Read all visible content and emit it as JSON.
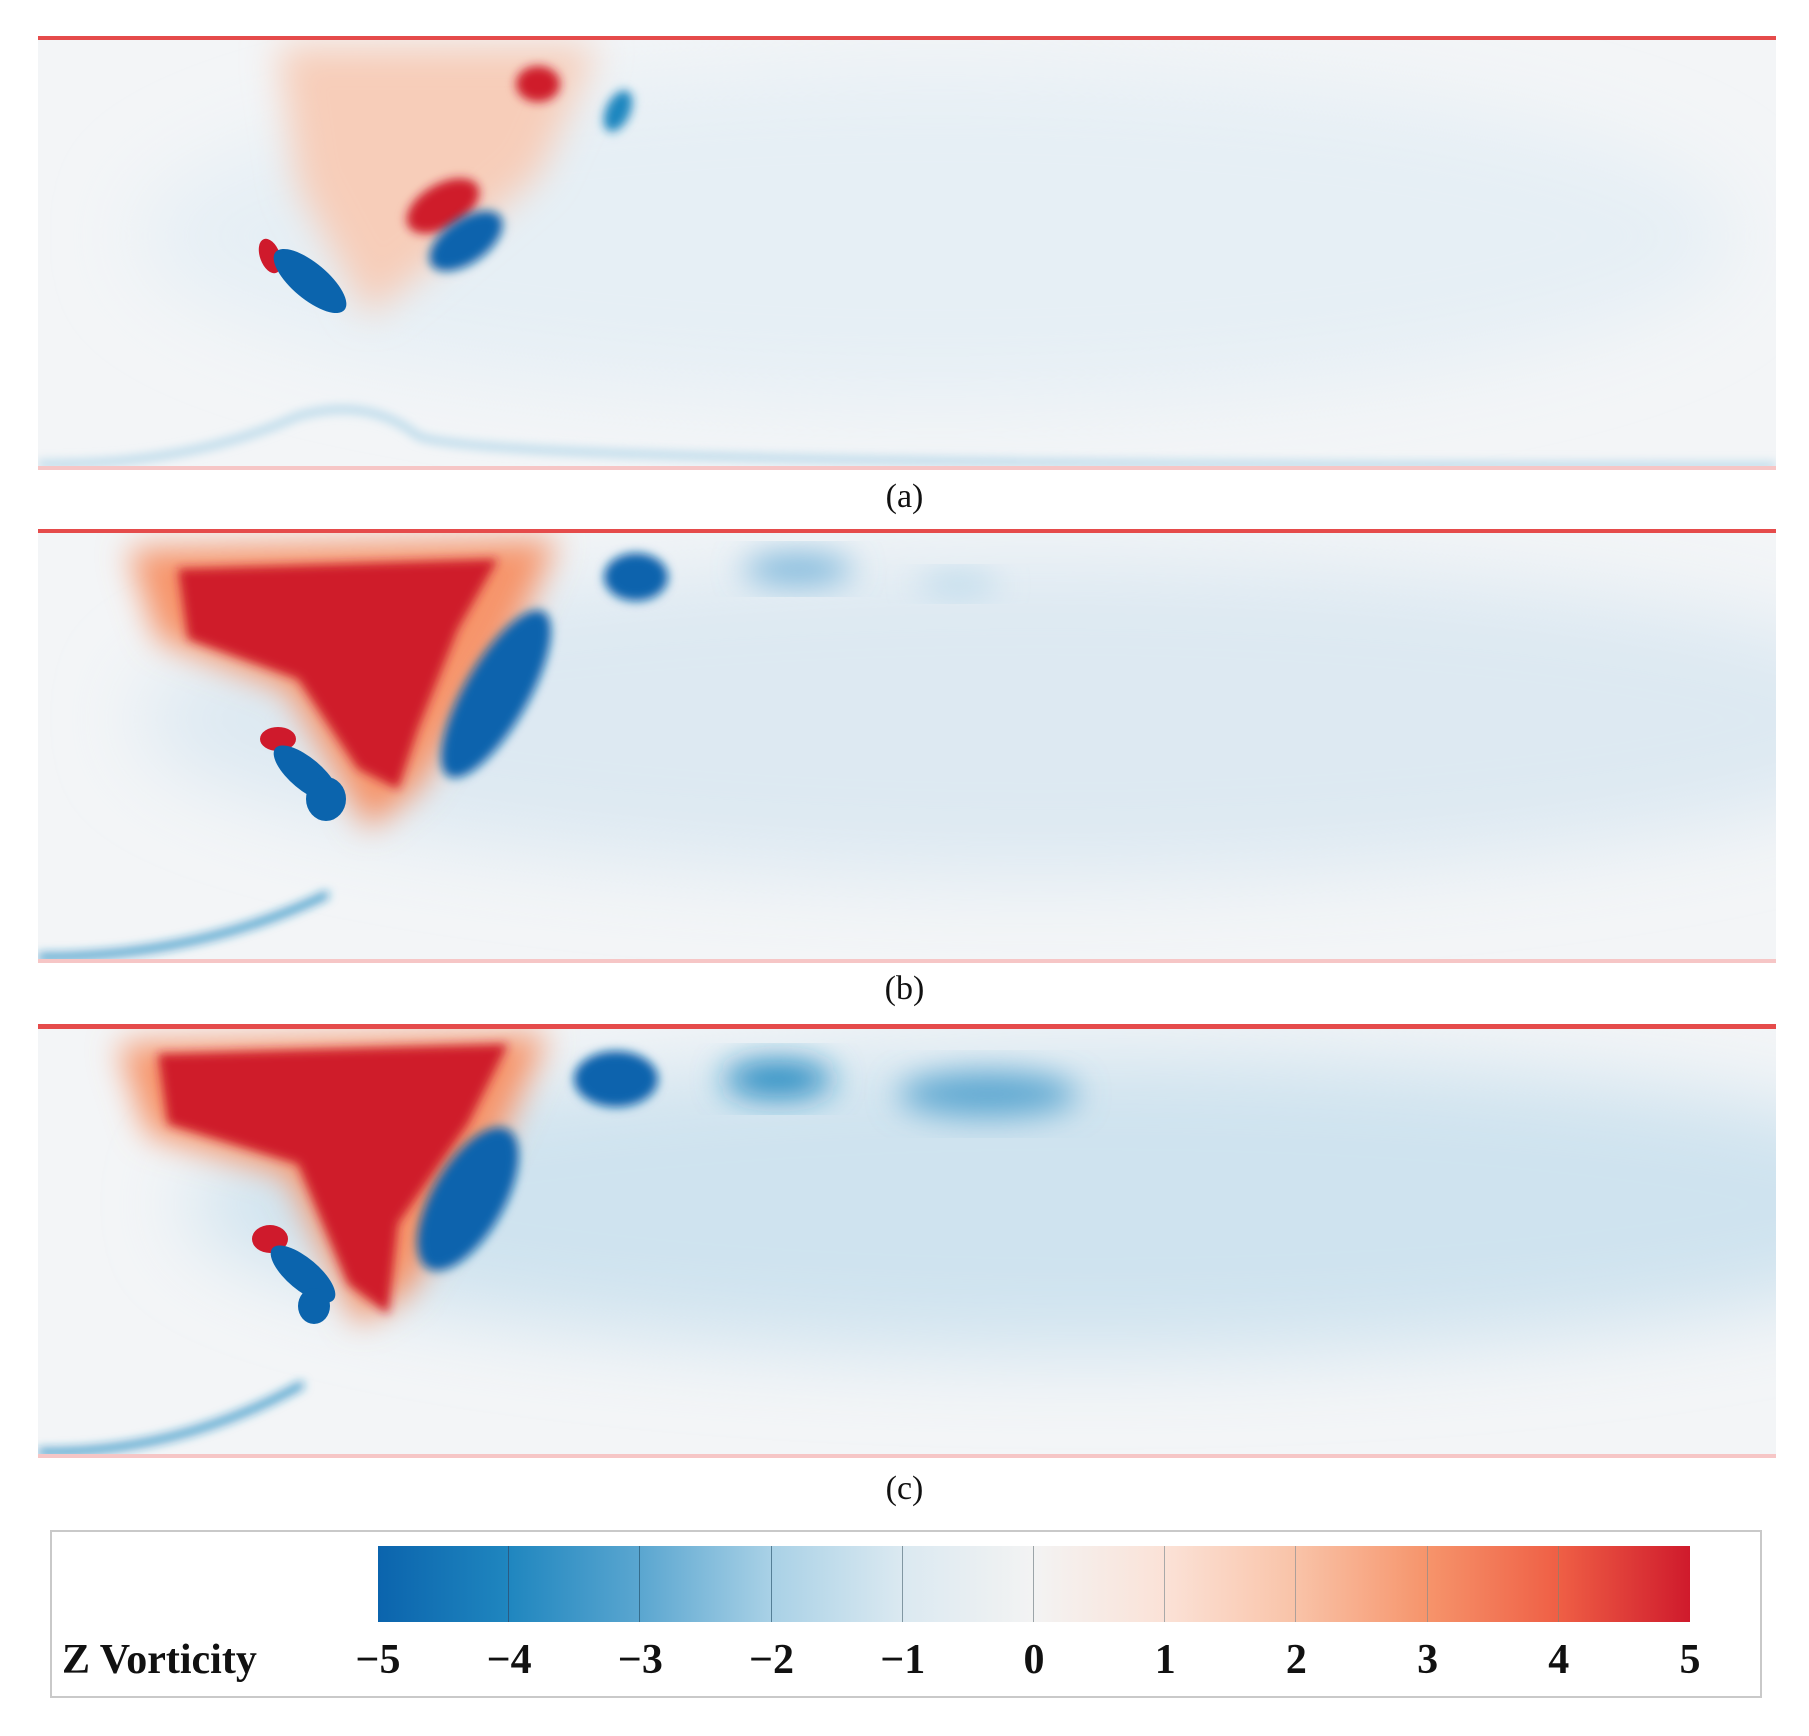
{
  "panels": [
    {
      "caption": "(a)"
    },
    {
      "caption": "(b)"
    },
    {
      "caption": "(c)"
    }
  ],
  "legend": {
    "title": "Z Vorticity",
    "ticks": [
      "−5",
      "−4",
      "−3",
      "−2",
      "−1",
      "0",
      "1",
      "2",
      "3",
      "4",
      "5"
    ],
    "range": [
      -5,
      5
    ],
    "colormap": [
      "#0b64ad",
      "#1f86bf",
      "#5aa6d0",
      "#a9d1e6",
      "#dbe9f1",
      "#f3f3f3",
      "#fbe2d7",
      "#f9c3a8",
      "#f6946b",
      "#ef5f45",
      "#cf1a2c"
    ],
    "min_color": "#0b64ad",
    "max_color": "#cf1a2c"
  }
}
